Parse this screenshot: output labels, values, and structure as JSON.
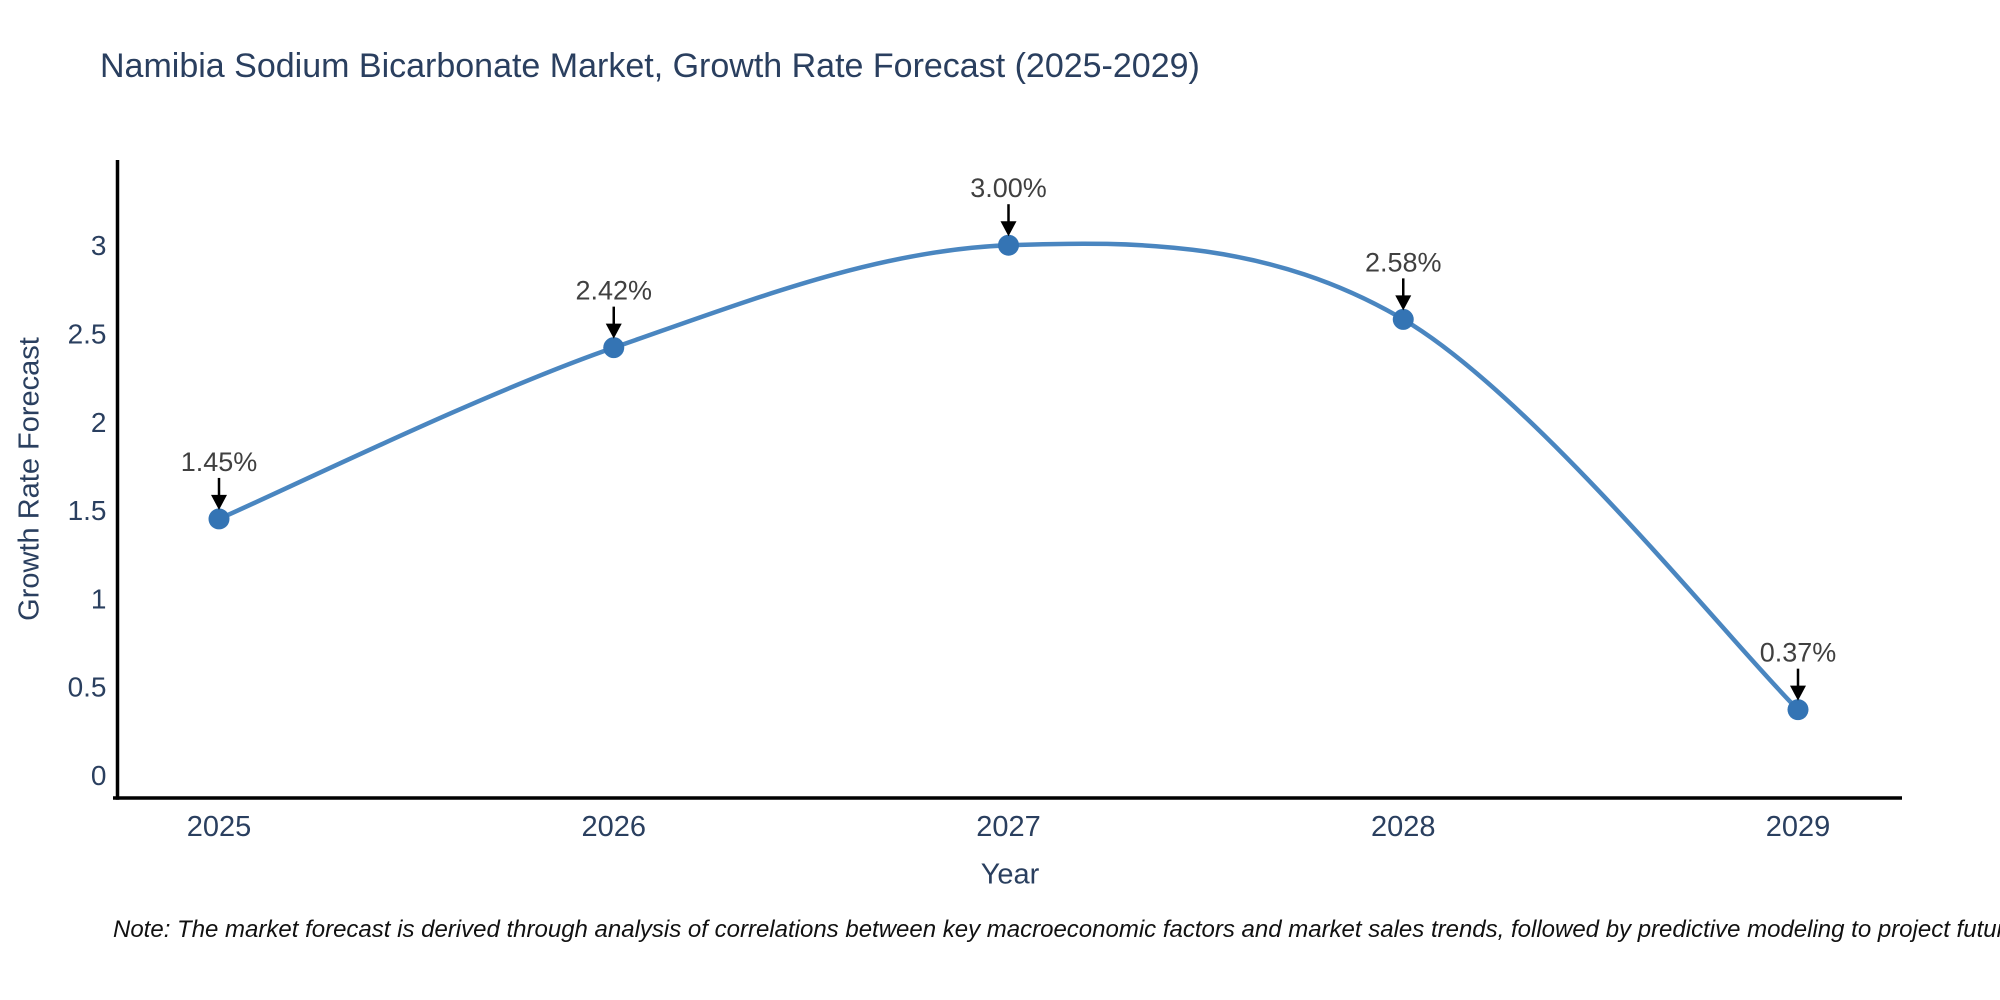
{
  "page": {
    "background_color": "#ffffff"
  },
  "chart_data": {
    "type": "line",
    "title": "Namibia Sodium Bicarbonate Market, Growth Rate Forecast (2025-2029)",
    "xlabel": "Year",
    "ylabel": "Growth Rate Forecast",
    "categories": [
      "2025",
      "2026",
      "2027",
      "2028",
      "2029"
    ],
    "series": [
      {
        "name": "Growth Rate Forecast",
        "values": [
          1.45,
          2.42,
          3.0,
          2.58,
          0.37
        ],
        "point_labels": [
          "1.45%",
          "2.42%",
          "3.00%",
          "2.58%",
          "0.37%"
        ]
      }
    ],
    "yticks": [
      "0",
      "0.5",
      "1",
      "1.5",
      "2",
      "2.5",
      "3"
    ],
    "ytick_values": [
      0,
      0.5,
      1,
      1.5,
      2,
      2.5,
      3
    ],
    "ylim": [
      -0.13,
      3.5
    ],
    "line_shape": "spline",
    "grid": false,
    "legend_position": "none",
    "colors": {
      "line": "#4a86c0",
      "marker": "#3474b4",
      "axis": "#010101",
      "axis_text": "#2a3f5f",
      "annotation_text": "#404040",
      "annotation_arrow": "#000000"
    },
    "note": "Note: The market forecast is derived through analysis of correlations between key macroeconomic factors and market sales trends, followed by predictive modeling to project future sales"
  }
}
